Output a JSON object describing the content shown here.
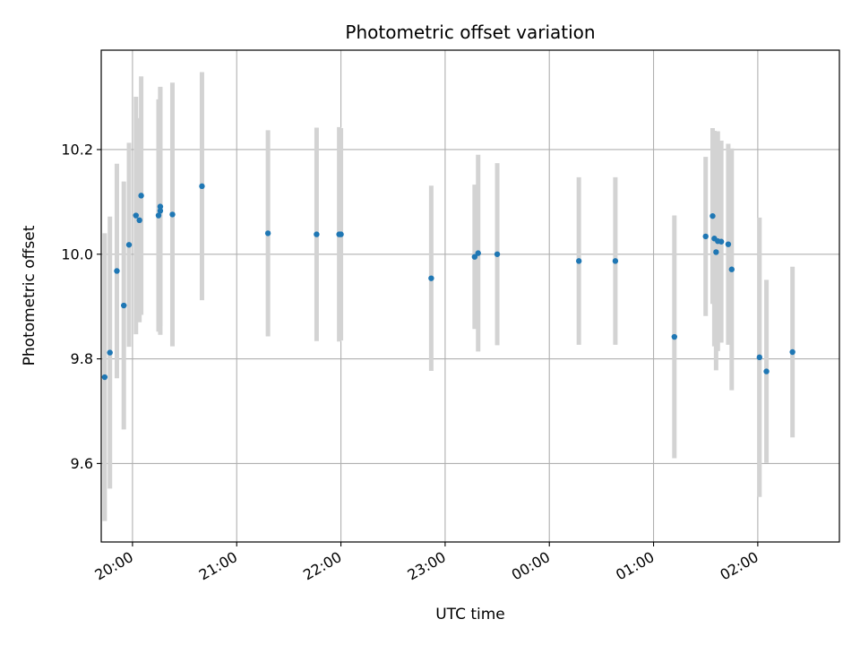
{
  "chart_data": {
    "type": "scatter",
    "title": "Photometric offset variation",
    "xlabel": "UTC time",
    "ylabel": "Photometric offset",
    "x_unit": "UTC clock time (hh:mm), night crossing midnight",
    "xlim": [
      "19:42",
      "02:47"
    ],
    "ylim": [
      9.45,
      10.39
    ],
    "x_ticks": [
      "20:00",
      "21:00",
      "22:00",
      "23:00",
      "00:00",
      "01:00",
      "02:00"
    ],
    "y_ticks": [
      9.6,
      9.8,
      10.0,
      10.2
    ],
    "y_tick_labels": [
      "9.6",
      "9.8",
      "10.0",
      "10.2"
    ],
    "grid": true,
    "legend": "none",
    "colors": {
      "point": "#1f77b4",
      "errorbar": "#d3d3d3",
      "grid": "#b0b0b0"
    },
    "series": [
      {
        "points": [
          {
            "x": "19:44",
            "y": 9.765,
            "err": 0.275
          },
          {
            "x": "19:47",
            "y": 9.812,
            "err": 0.26
          },
          {
            "x": "19:51",
            "y": 9.968,
            "err": 0.205
          },
          {
            "x": "19:55",
            "y": 9.902,
            "err": 0.237
          },
          {
            "x": "19:58",
            "y": 10.018,
            "err": 0.195
          },
          {
            "x": "20:02",
            "y": 10.074,
            "err": 0.227
          },
          {
            "x": "20:04",
            "y": 10.065,
            "err": 0.195
          },
          {
            "x": "20:05",
            "y": 10.112,
            "err": 0.228
          },
          {
            "x": "20:15",
            "y": 10.074,
            "err": 0.222
          },
          {
            "x": "20:16",
            "y": 10.083,
            "err": 0.237
          },
          {
            "x": "20:16",
            "y": 10.091,
            "err": 0.228
          },
          {
            "x": "20:23",
            "y": 10.076,
            "err": 0.252
          },
          {
            "x": "20:40",
            "y": 10.13,
            "err": 0.218
          },
          {
            "x": "21:18",
            "y": 10.04,
            "err": 0.197
          },
          {
            "x": "21:46",
            "y": 10.038,
            "err": 0.204
          },
          {
            "x": "21:59",
            "y": 10.038,
            "err": 0.205
          },
          {
            "x": "22:00",
            "y": 10.038,
            "err": 0.203
          },
          {
            "x": "22:52",
            "y": 9.954,
            "err": 0.177
          },
          {
            "x": "23:17",
            "y": 9.995,
            "err": 0.138
          },
          {
            "x": "23:19",
            "y": 10.002,
            "err": 0.188
          },
          {
            "x": "23:30",
            "y": 10.0,
            "err": 0.174
          },
          {
            "x": "00:17",
            "y": 9.987,
            "err": 0.16
          },
          {
            "x": "00:38",
            "y": 9.987,
            "err": 0.16
          },
          {
            "x": "01:12",
            "y": 9.842,
            "err": 0.232
          },
          {
            "x": "01:30",
            "y": 10.034,
            "err": 0.152
          },
          {
            "x": "01:34",
            "y": 10.073,
            "err": 0.168
          },
          {
            "x": "01:35",
            "y": 10.03,
            "err": 0.206
          },
          {
            "x": "01:36",
            "y": 10.004,
            "err": 0.226
          },
          {
            "x": "01:37",
            "y": 10.025,
            "err": 0.21
          },
          {
            "x": "01:39",
            "y": 10.024,
            "err": 0.193
          },
          {
            "x": "01:43",
            "y": 10.019,
            "err": 0.192
          },
          {
            "x": "01:45",
            "y": 9.971,
            "err": 0.231
          },
          {
            "x": "02:01",
            "y": 9.803,
            "err": 0.267
          },
          {
            "x": "02:05",
            "y": 9.776,
            "err": 0.175
          },
          {
            "x": "02:20",
            "y": 9.813,
            "err": 0.163
          }
        ]
      }
    ]
  }
}
